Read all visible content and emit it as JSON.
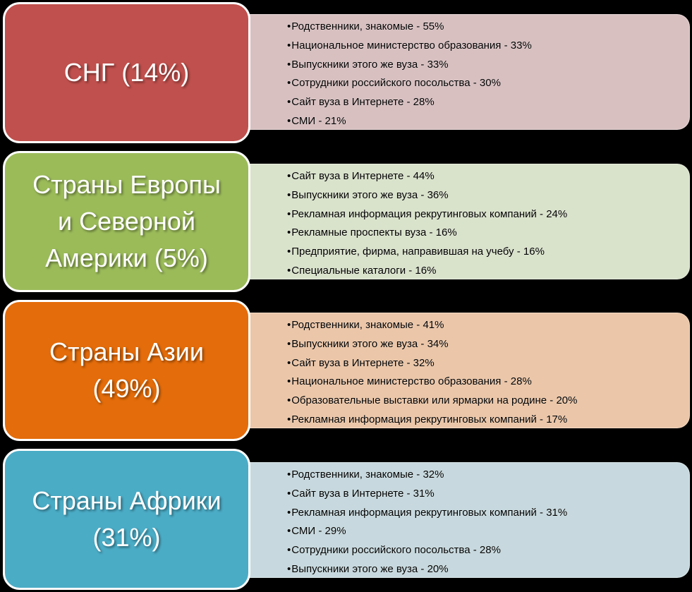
{
  "regions": [
    {
      "label": "СНГ (14%)",
      "color": "#c0504d",
      "panel_color": "#d8c0c1",
      "items": [
        "Родственники, знакомые - 55%",
        "Национальное министерство образования - 33%",
        "Выпускники этого же вуза - 33%",
        "Сотрудники российского посольства - 30%",
        "Сайт вуза в Интернете - 28%",
        "СМИ - 21%"
      ]
    },
    {
      "label": "Страны Европы\nи Северной\nАмерики (5%)",
      "color": "#9bbb59",
      "panel_color": "#d9e2cb",
      "items": [
        "Сайт вуза в Интернете - 44%",
        "Выпускники этого же вуза - 36%",
        "Рекламная информация рекрутинговых компаний - 24%",
        "Рекламные проспекты вуза - 16%",
        "Предприятие, фирма, направившая на учебу - 16%",
        "Специальные каталоги - 16%"
      ]
    },
    {
      "label": "Страны Азии\n(49%)",
      "color": "#e46c0a",
      "panel_color": "#ebc6a8",
      "items": [
        "Родственники, знакомые - 41%",
        "Выпускники этого же вуза - 34%",
        "Сайт вуза в Интернете - 32%",
        "Национальное министерство образования - 28%",
        "Образовательные выставки или ярмарки на родине - 20%",
        "Рекламная информация рекрутинговых компаний - 17%"
      ]
    },
    {
      "label": "Страны Африки\n(31%)",
      "color": "#4bacc6",
      "panel_color": "#c7d9de",
      "items": [
        "Родственники, знакомые - 32%",
        "Сайт вуза в Интернете - 31%",
        "Рекламная информация рекрутинговых компаний - 31%",
        "СМИ - 29%",
        "Сотрудники российского посольства - 28%",
        "Выпускники этого же вуза - 20%"
      ]
    }
  ]
}
